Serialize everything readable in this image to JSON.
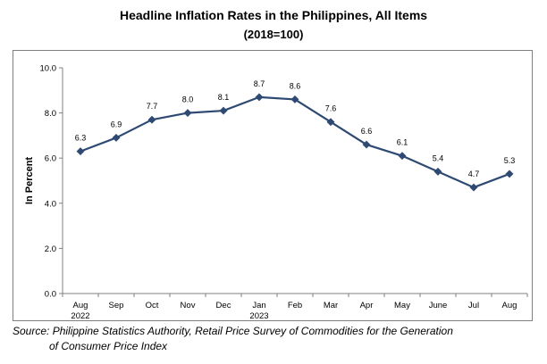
{
  "title": "Headline Inflation Rates in the Philippines, All Items",
  "subtitle": "(2018=100)",
  "source_line1": "Source: Philippine Statistics Authority, Retail Price Survey of Commodities for the Generation",
  "source_line2": "of Consumer Price Index",
  "chart_data": {
    "type": "line",
    "title": "Headline Inflation Rates in the Philippines, All Items",
    "subtitle": "(2018=100)",
    "ylabel": "In Percent",
    "xlabel": "",
    "ylim": [
      0,
      10
    ],
    "yticks": [
      "0.0",
      "2.0",
      "4.0",
      "6.0",
      "8.0",
      "10.0"
    ],
    "categories": [
      "Aug",
      "Sep",
      "Oct",
      "Nov",
      "Dec",
      "Jan",
      "Feb",
      "Mar",
      "Apr",
      "May",
      "June",
      "Jul",
      "Aug"
    ],
    "category_sublabels": [
      "2022",
      "",
      "",
      "",
      "",
      "2023",
      "",
      "",
      "",
      "",
      "",
      "",
      ""
    ],
    "values": [
      6.3,
      6.9,
      7.7,
      8.0,
      8.1,
      8.7,
      8.6,
      7.6,
      6.6,
      6.1,
      5.4,
      4.7,
      5.3
    ],
    "data_labels": [
      "6.3",
      "6.9",
      "7.7",
      "8.0",
      "8.1",
      "8.7",
      "8.6",
      "7.6",
      "6.6",
      "6.1",
      "5.4",
      "4.7",
      "5.3"
    ],
    "grid": false,
    "legend": "none",
    "line_color": "#2e4a73",
    "marker": "diamond"
  }
}
